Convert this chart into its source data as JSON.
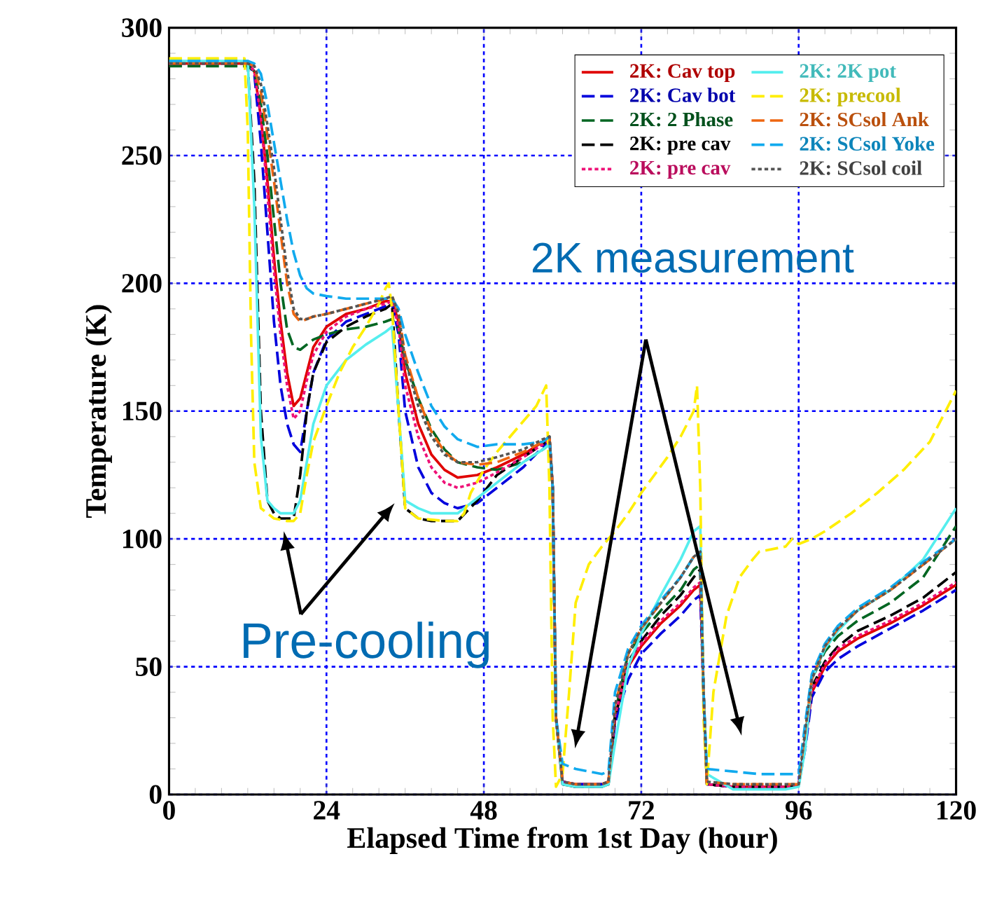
{
  "chart_data": {
    "type": "line",
    "xlabel": "Elapsed Time from 1st Day (hour)",
    "ylabel": "Temperature (K)",
    "xlim": [
      0,
      120
    ],
    "ylim": [
      0,
      300
    ],
    "xticks": [
      0,
      24,
      48,
      72,
      96,
      120
    ],
    "yticks": [
      0,
      50,
      100,
      150,
      200,
      250,
      300
    ],
    "grid": true,
    "legend": "top right",
    "x": [
      0,
      12,
      13,
      14,
      15,
      16,
      17,
      18,
      19,
      20,
      21,
      22,
      24,
      27,
      30,
      33,
      34,
      35,
      36,
      38,
      40,
      42,
      44,
      47,
      50,
      54,
      57,
      58,
      58.5,
      59,
      60,
      62,
      64,
      66,
      67,
      68,
      70,
      72,
      75,
      78,
      80,
      81,
      81.5,
      82,
      86,
      90,
      94,
      96,
      97,
      98,
      100,
      102,
      105,
      110,
      115,
      120
    ],
    "series": [
      {
        "name": "2K: Cav top",
        "color": "#e00000",
        "line_style": "solid",
        "values": [
          286,
          286,
          283,
          265,
          240,
          210,
          185,
          165,
          152,
          155,
          165,
          175,
          183,
          188,
          190,
          193,
          193,
          185,
          165,
          145,
          133,
          127,
          124,
          125,
          128,
          133,
          138,
          140,
          120,
          30,
          5,
          4,
          4,
          4,
          5,
          30,
          50,
          58,
          67,
          74,
          80,
          82,
          40,
          4,
          3,
          3,
          3,
          4,
          20,
          40,
          50,
          56,
          61,
          67,
          74,
          82
        ]
      },
      {
        "name": "2K: Cav bot",
        "color": "#0000dd",
        "line_style": "dashed",
        "values": [
          286,
          286,
          282,
          255,
          220,
          185,
          160,
          145,
          137,
          134,
          150,
          165,
          178,
          185,
          188,
          191,
          192,
          180,
          150,
          128,
          118,
          114,
          112,
          114,
          120,
          128,
          136,
          139,
          120,
          30,
          5,
          4,
          4,
          4,
          5,
          28,
          45,
          55,
          63,
          70,
          76,
          78,
          40,
          4,
          3,
          3,
          3,
          4,
          18,
          38,
          48,
          53,
          58,
          65,
          72,
          80
        ]
      },
      {
        "name": "2K: 2 Phase",
        "color": "#006622",
        "line_style": "dashed",
        "values": [
          285,
          285,
          283,
          270,
          250,
          225,
          200,
          182,
          175,
          174,
          176,
          178,
          180,
          182,
          183,
          185,
          186,
          182,
          170,
          155,
          143,
          135,
          130,
          128,
          127,
          130,
          135,
          137,
          120,
          30,
          4,
          3,
          3,
          3,
          4,
          32,
          55,
          63,
          72,
          80,
          88,
          90,
          40,
          4,
          3,
          3,
          3,
          3,
          22,
          45,
          56,
          62,
          68,
          75,
          85,
          105
        ]
      },
      {
        "name": "2K: pre cav",
        "color": "#000000",
        "line_style": "dashed",
        "values": [
          286,
          286,
          240,
          150,
          115,
          110,
          108,
          108,
          108,
          125,
          150,
          165,
          177,
          183,
          187,
          190,
          192,
          150,
          112,
          108,
          107,
          107,
          107,
          115,
          125,
          132,
          137,
          140,
          120,
          30,
          4,
          3,
          3,
          3,
          4,
          30,
          52,
          60,
          70,
          78,
          85,
          88,
          40,
          4,
          3,
          3,
          3,
          4,
          20,
          42,
          52,
          58,
          64,
          70,
          77,
          87
        ]
      },
      {
        "name": "2K: pre cav",
        "color": "#ee1177",
        "line_style": "dotted",
        "values": [
          286,
          286,
          283,
          265,
          235,
          205,
          180,
          160,
          147,
          150,
          162,
          172,
          181,
          187,
          190,
          192,
          193,
          183,
          160,
          140,
          128,
          122,
          120,
          122,
          126,
          132,
          137,
          139,
          120,
          30,
          5,
          4,
          4,
          4,
          5,
          31,
          51,
          59,
          68,
          75,
          81,
          83,
          40,
          4,
          3,
          3,
          3,
          4,
          21,
          41,
          51,
          57,
          62,
          68,
          75,
          83
        ]
      },
      {
        "name": "2K: 2K pot",
        "color": "#55eeee",
        "line_style": "solid",
        "values": [
          287,
          287,
          230,
          140,
          115,
          112,
          110,
          110,
          110,
          115,
          130,
          145,
          160,
          170,
          176,
          181,
          183,
          150,
          115,
          112,
          110,
          110,
          110,
          116,
          122,
          130,
          135,
          137,
          120,
          30,
          4,
          3,
          3,
          3,
          4,
          20,
          50,
          63,
          78,
          92,
          103,
          105,
          40,
          8,
          2,
          2,
          2,
          3,
          18,
          45,
          57,
          64,
          72,
          80,
          92,
          112
        ]
      },
      {
        "name": "2K: precool",
        "color": "#ffee00",
        "line_style": "dashed",
        "x": [
          0,
          11.5,
          12,
          12.5,
          13,
          14,
          16,
          18,
          19,
          20,
          21,
          22,
          24,
          26,
          28,
          30,
          32,
          33,
          33.5,
          34,
          35,
          36,
          38,
          42,
          44,
          45,
          46,
          48,
          50,
          52,
          54,
          56,
          57.5,
          58,
          58.5,
          59,
          60,
          61,
          62,
          64,
          66,
          68,
          70,
          72,
          74,
          76,
          78,
          80,
          80.5,
          81,
          81.5,
          82,
          83,
          85,
          87,
          89,
          90,
          92,
          94,
          95,
          96,
          98,
          100,
          104,
          108,
          112,
          116,
          120
        ],
        "values": [
          288,
          288,
          260,
          180,
          130,
          112,
          108,
          107,
          107,
          110,
          125,
          138,
          152,
          165,
          175,
          183,
          192,
          198,
          200,
          190,
          150,
          112,
          108,
          107,
          107,
          110,
          118,
          127,
          134,
          140,
          146,
          152,
          160,
          120,
          30,
          3,
          8,
          40,
          75,
          90,
          97,
          103,
          110,
          118,
          125,
          132,
          140,
          150,
          160,
          120,
          30,
          4,
          40,
          70,
          85,
          92,
          95,
          96,
          97,
          100,
          98,
          100,
          103,
          110,
          118,
          127,
          138,
          158
        ]
      },
      {
        "name": "2K: SCsol Ank",
        "color": "#ee6611",
        "line_style": "dashed",
        "values": [
          286,
          286,
          285,
          275,
          258,
          240,
          220,
          200,
          188,
          185,
          186,
          187,
          188,
          190,
          192,
          194,
          195,
          188,
          172,
          155,
          142,
          134,
          130,
          129,
          130,
          134,
          138,
          140,
          120,
          30,
          5,
          4,
          4,
          4,
          5,
          35,
          55,
          65,
          75,
          85,
          93,
          95,
          40,
          5,
          4,
          4,
          4,
          4,
          25,
          45,
          58,
          65,
          72,
          80,
          90,
          100
        ]
      },
      {
        "name": "2K: SCsol Yoke",
        "color": "#11aaee",
        "line_style": "dashed",
        "values": [
          287,
          287,
          286,
          282,
          270,
          255,
          240,
          225,
          212,
          203,
          198,
          196,
          195,
          194,
          194,
          194,
          194,
          190,
          180,
          165,
          152,
          144,
          139,
          136,
          137,
          137,
          138,
          140,
          120,
          30,
          12,
          10,
          9,
          8,
          9,
          40,
          57,
          66,
          76,
          85,
          93,
          95,
          40,
          10,
          9,
          8,
          8,
          8,
          28,
          47,
          59,
          66,
          73,
          81,
          91,
          100
        ]
      },
      {
        "name": "2K: SCsol coil",
        "color": "#555555",
        "line_style": "dotted",
        "values": [
          286,
          286,
          285,
          278,
          262,
          245,
          225,
          205,
          190,
          186,
          186,
          187,
          188,
          190,
          192,
          194,
          195,
          188,
          170,
          152,
          140,
          133,
          130,
          130,
          132,
          135,
          139,
          140,
          120,
          30,
          5,
          4,
          4,
          4,
          5,
          35,
          55,
          65,
          75,
          85,
          93,
          95,
          40,
          5,
          4,
          4,
          4,
          4,
          25,
          45,
          58,
          65,
          72,
          80,
          90,
          100
        ]
      }
    ],
    "annotations": [
      "2K measurement",
      "Pre-cooling"
    ]
  }
}
